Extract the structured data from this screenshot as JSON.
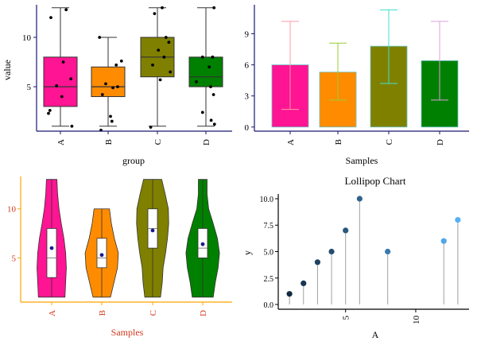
{
  "colors": {
    "A": "#ff1493",
    "B": "#ff8c00",
    "C": "#808000",
    "D": "#008000",
    "axis_blue": "#191970",
    "axis_orange": "#ffa500",
    "label_red": "#d2381e",
    "lollipop_dark": "#132b43",
    "lollipop_light": "#56b1f7",
    "stem": "#a0a0a0"
  },
  "chart_data": [
    {
      "id": "boxplot",
      "type": "boxplot",
      "title": "",
      "xlabel": "group",
      "ylabel": "value",
      "categories": [
        "A",
        "B",
        "C",
        "D"
      ],
      "ylim": [
        0.5,
        13.3
      ],
      "yticks": [
        5,
        10
      ],
      "boxes": [
        {
          "name": "A",
          "min": 1,
          "q1": 3,
          "median": 5,
          "q3": 8,
          "max": 13
        },
        {
          "name": "B",
          "min": 1,
          "q1": 4,
          "median": 5,
          "q3": 7,
          "max": 10
        },
        {
          "name": "C",
          "min": 1,
          "q1": 6,
          "median": 8,
          "q3": 10,
          "max": 13
        },
        {
          "name": "D",
          "min": 1,
          "q1": 5,
          "median": 6,
          "q3": 8,
          "max": 13
        }
      ],
      "points": [
        {
          "group": "A",
          "offset": -0.2,
          "value": 12
        },
        {
          "group": "A",
          "offset": 0.12,
          "value": 12.8
        },
        {
          "group": "A",
          "offset": 0.06,
          "value": 7.5
        },
        {
          "group": "A",
          "offset": 0.22,
          "value": 5.8
        },
        {
          "group": "A",
          "offset": -0.08,
          "value": 5.1
        },
        {
          "group": "A",
          "offset": 0.03,
          "value": 4
        },
        {
          "group": "A",
          "offset": -0.22,
          "value": 2.6
        },
        {
          "group": "A",
          "offset": -0.25,
          "value": 2.3
        },
        {
          "group": "A",
          "offset": 0.24,
          "value": 1
        },
        {
          "group": "B",
          "offset": -0.18,
          "value": 10
        },
        {
          "group": "B",
          "offset": 0.28,
          "value": 7.6
        },
        {
          "group": "B",
          "offset": 0.17,
          "value": 7.2
        },
        {
          "group": "B",
          "offset": -0.05,
          "value": 5.3
        },
        {
          "group": "B",
          "offset": 0.2,
          "value": 5
        },
        {
          "group": "B",
          "offset": 0.1,
          "value": 4.9
        },
        {
          "group": "B",
          "offset": -0.12,
          "value": 4.2
        },
        {
          "group": "B",
          "offset": 0.05,
          "value": 2
        },
        {
          "group": "B",
          "offset": 0.08,
          "value": 1.5
        },
        {
          "group": "B",
          "offset": -0.15,
          "value": 0.6
        },
        {
          "group": "C",
          "offset": -0.06,
          "value": 12.4
        },
        {
          "group": "C",
          "offset": 0.1,
          "value": 13
        },
        {
          "group": "C",
          "offset": 0.18,
          "value": 10
        },
        {
          "group": "C",
          "offset": 0.24,
          "value": 9.5
        },
        {
          "group": "C",
          "offset": 0.02,
          "value": 8.7
        },
        {
          "group": "C",
          "offset": 0.14,
          "value": 8
        },
        {
          "group": "C",
          "offset": -0.1,
          "value": 7.2
        },
        {
          "group": "C",
          "offset": 0.27,
          "value": 6.5
        },
        {
          "group": "C",
          "offset": 0.06,
          "value": 5.7
        },
        {
          "group": "C",
          "offset": -0.14,
          "value": 0.9
        },
        {
          "group": "D",
          "offset": 0.17,
          "value": 13
        },
        {
          "group": "D",
          "offset": -0.07,
          "value": 8
        },
        {
          "group": "D",
          "offset": 0.14,
          "value": 8
        },
        {
          "group": "D",
          "offset": 0.07,
          "value": 7
        },
        {
          "group": "D",
          "offset": -0.2,
          "value": 5.5
        },
        {
          "group": "D",
          "offset": 0.1,
          "value": 5
        },
        {
          "group": "D",
          "offset": 0.16,
          "value": 4.2
        },
        {
          "group": "D",
          "offset": -0.07,
          "value": 2.4
        },
        {
          "group": "D",
          "offset": 0.11,
          "value": 1.6
        },
        {
          "group": "D",
          "offset": 0.18,
          "value": 1.2
        }
      ]
    },
    {
      "id": "barchart",
      "type": "bar",
      "title": "",
      "xlabel": "Samples",
      "ylabel": "",
      "categories": [
        "A",
        "B",
        "C",
        "D"
      ],
      "values": [
        6.0,
        5.3,
        7.8,
        6.4
      ],
      "error_low": [
        1.7,
        2.6,
        4.2,
        2.6
      ],
      "error_high": [
        10.2,
        8.1,
        11.3,
        10.2
      ],
      "ylim": [
        -0.4,
        11.8
      ],
      "yticks": [
        0,
        3,
        6,
        9
      ]
    },
    {
      "id": "violin",
      "type": "violin",
      "title": "",
      "xlabel": "Samples",
      "ylabel": "",
      "categories": [
        "A",
        "B",
        "C",
        "D"
      ],
      "ylim": [
        0.5,
        13.3
      ],
      "yticks": [
        5,
        10
      ],
      "violins": [
        {
          "name": "A",
          "min": 1,
          "max": 13,
          "q1": 3,
          "median": 5,
          "q3": 8,
          "mean": 6,
          "density": [
            [
              1,
              0.76
            ],
            [
              2.5,
              0.8
            ],
            [
              4,
              0.84
            ],
            [
              5.5,
              0.8
            ],
            [
              7,
              0.7
            ],
            [
              8.5,
              0.55
            ],
            [
              10,
              0.42
            ],
            [
              11.5,
              0.34
            ],
            [
              13,
              0.3
            ]
          ]
        },
        {
          "name": "B",
          "min": 1,
          "max": 10,
          "q1": 4,
          "median": 5,
          "q3": 7,
          "mean": 5.3,
          "density": [
            [
              1,
              0.5
            ],
            [
              2.5,
              0.7
            ],
            [
              4,
              0.9
            ],
            [
              5.5,
              0.95
            ],
            [
              7,
              0.72
            ],
            [
              8.5,
              0.55
            ],
            [
              10,
              0.44
            ]
          ]
        },
        {
          "name": "C",
          "min": 1,
          "max": 13,
          "q1": 6,
          "median": 8,
          "q3": 10,
          "mean": 7.8,
          "density": [
            [
              1,
              0.45
            ],
            [
              2.5,
              0.55
            ],
            [
              4,
              0.6
            ],
            [
              5.5,
              0.74
            ],
            [
              7,
              0.85
            ],
            [
              8.5,
              0.92
            ],
            [
              10,
              0.9
            ],
            [
              11.5,
              0.72
            ],
            [
              13,
              0.52
            ]
          ]
        },
        {
          "name": "D",
          "min": 1,
          "max": 13,
          "q1": 5,
          "median": 6,
          "q3": 8,
          "mean": 6.4,
          "density": [
            [
              1,
              0.6
            ],
            [
              2.5,
              0.72
            ],
            [
              4,
              0.88
            ],
            [
              5.5,
              0.96
            ],
            [
              7,
              0.84
            ],
            [
              8.5,
              0.6
            ],
            [
              10,
              0.34
            ],
            [
              11.5,
              0.25
            ],
            [
              13,
              0.25
            ]
          ]
        }
      ]
    },
    {
      "id": "lollipop",
      "type": "scatter",
      "title": "Lollipop Chart",
      "xlabel": "A",
      "ylabel": "y",
      "x": [
        1,
        2,
        3,
        4,
        5,
        6,
        8,
        12,
        13
      ],
      "y": [
        1,
        2,
        4,
        5,
        7,
        10,
        5,
        6,
        8
      ],
      "xlim": [
        0.2,
        13.8
      ],
      "ylim": [
        -0.45,
        10.45
      ],
      "xticks": [
        5,
        10
      ],
      "yticks": [
        0.0,
        2.5,
        5.0,
        7.5,
        10.0
      ]
    }
  ]
}
